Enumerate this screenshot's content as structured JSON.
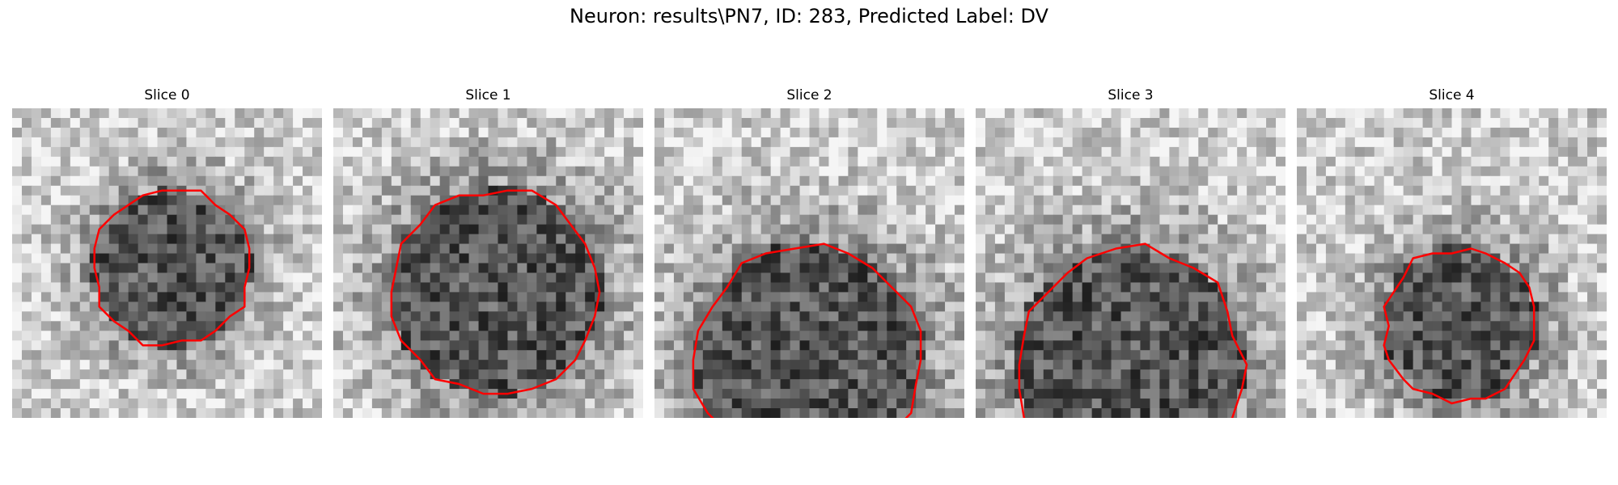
{
  "figure": {
    "title": "Neuron: results\\PN7, ID: 283, Predicted Label: DV",
    "outline_color": "#ff0000"
  },
  "slices": [
    {
      "label": "Slice 0"
    },
    {
      "label": "Slice 1"
    },
    {
      "label": "Slice 2"
    },
    {
      "label": "Slice 3"
    },
    {
      "label": "Slice 4"
    }
  ]
}
